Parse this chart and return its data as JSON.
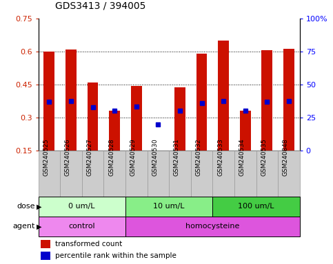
{
  "title": "GDS3413 / 394005",
  "samples": [
    "GSM240525",
    "GSM240526",
    "GSM240527",
    "GSM240528",
    "GSM240529",
    "GSM240530",
    "GSM240531",
    "GSM240532",
    "GSM240533",
    "GSM240534",
    "GSM240535",
    "GSM240848"
  ],
  "red_values": [
    0.6,
    0.61,
    0.46,
    0.33,
    0.443,
    0.15,
    0.437,
    0.59,
    0.65,
    0.33,
    0.607,
    0.612
  ],
  "blue_values": [
    0.37,
    0.375,
    0.345,
    0.33,
    0.35,
    0.268,
    0.33,
    0.365,
    0.375,
    0.33,
    0.37,
    0.375
  ],
  "ylim": [
    0.15,
    0.75
  ],
  "yticks": [
    0.15,
    0.3,
    0.45,
    0.6,
    0.75
  ],
  "ytick_labels": [
    "0.15",
    "0.3",
    "0.45",
    "0.6",
    "0.75"
  ],
  "right_ytick_labels": [
    "0",
    "25",
    "50",
    "75",
    "100%"
  ],
  "bar_color": "#cc1100",
  "dot_color": "#0000cc",
  "dot_size": 4,
  "bar_width": 0.5,
  "ybase": 0.15,
  "grid_lines": [
    0.3,
    0.45,
    0.6
  ],
  "dose_groups": [
    {
      "label": "0 um/L",
      "start": 0,
      "end": 3,
      "color": "#ccffcc"
    },
    {
      "label": "10 um/L",
      "start": 4,
      "end": 7,
      "color": "#88ee88"
    },
    {
      "label": "100 um/L",
      "start": 8,
      "end": 11,
      "color": "#44cc44"
    }
  ],
  "agent_groups": [
    {
      "label": "control",
      "start": 0,
      "end": 3,
      "color": "#ee88ee"
    },
    {
      "label": "homocysteine",
      "start": 4,
      "end": 11,
      "color": "#dd55dd"
    }
  ],
  "dose_label": "dose",
  "agent_label": "agent",
  "legend_red": "transformed count",
  "legend_blue": "percentile rank within the sample",
  "sample_box_color": "#cccccc",
  "sample_box_edge": "#999999"
}
